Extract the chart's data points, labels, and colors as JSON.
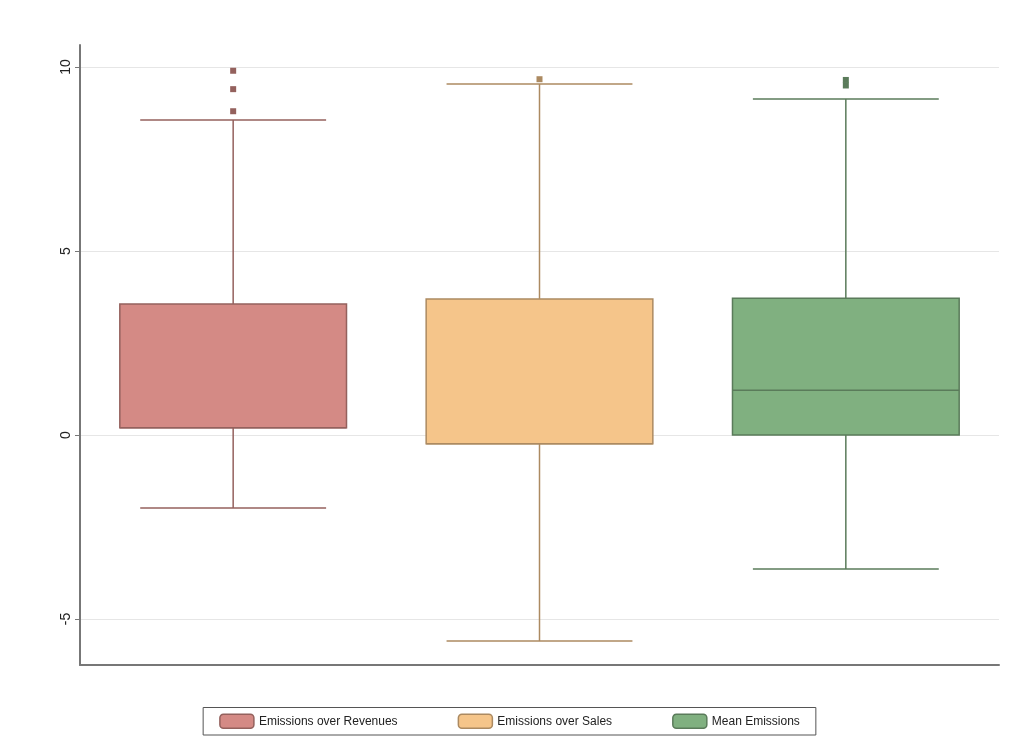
{
  "chart_data": {
    "type": "box",
    "categories": [
      null
    ],
    "series": [
      {
        "name": "Emissions over Revenues",
        "color": "#d48a85",
        "boxes": [
          {
            "low": -1.98,
            "q1": 0.2,
            "median": 0.2,
            "q3": 3.56,
            "high": 8.56,
            "outliers": [
              8.8,
              9.4,
              9.9
            ]
          }
        ]
      },
      {
        "name": "Emissions over Sales",
        "color": "#f5c58a",
        "boxes": [
          {
            "low": -5.6,
            "q1": -0.24,
            "median": -0.24,
            "q3": 3.7,
            "high": 9.54,
            "outliers": [
              9.67
            ]
          }
        ]
      },
      {
        "name": "Mean Emissions",
        "color": "#80b080",
        "boxes": [
          {
            "low": -3.64,
            "q1": 0,
            "median": 1.22,
            "q3": 3.72,
            "high": 9.13,
            "outliers": [
              9.5,
              9.65
            ]
          }
        ]
      }
    ],
    "ylim": [
      -6.25,
      10.6
    ],
    "yticks": [
      -5,
      0,
      5,
      10
    ],
    "tick_labels": "y",
    "grid": "y",
    "legend": "bottom"
  }
}
